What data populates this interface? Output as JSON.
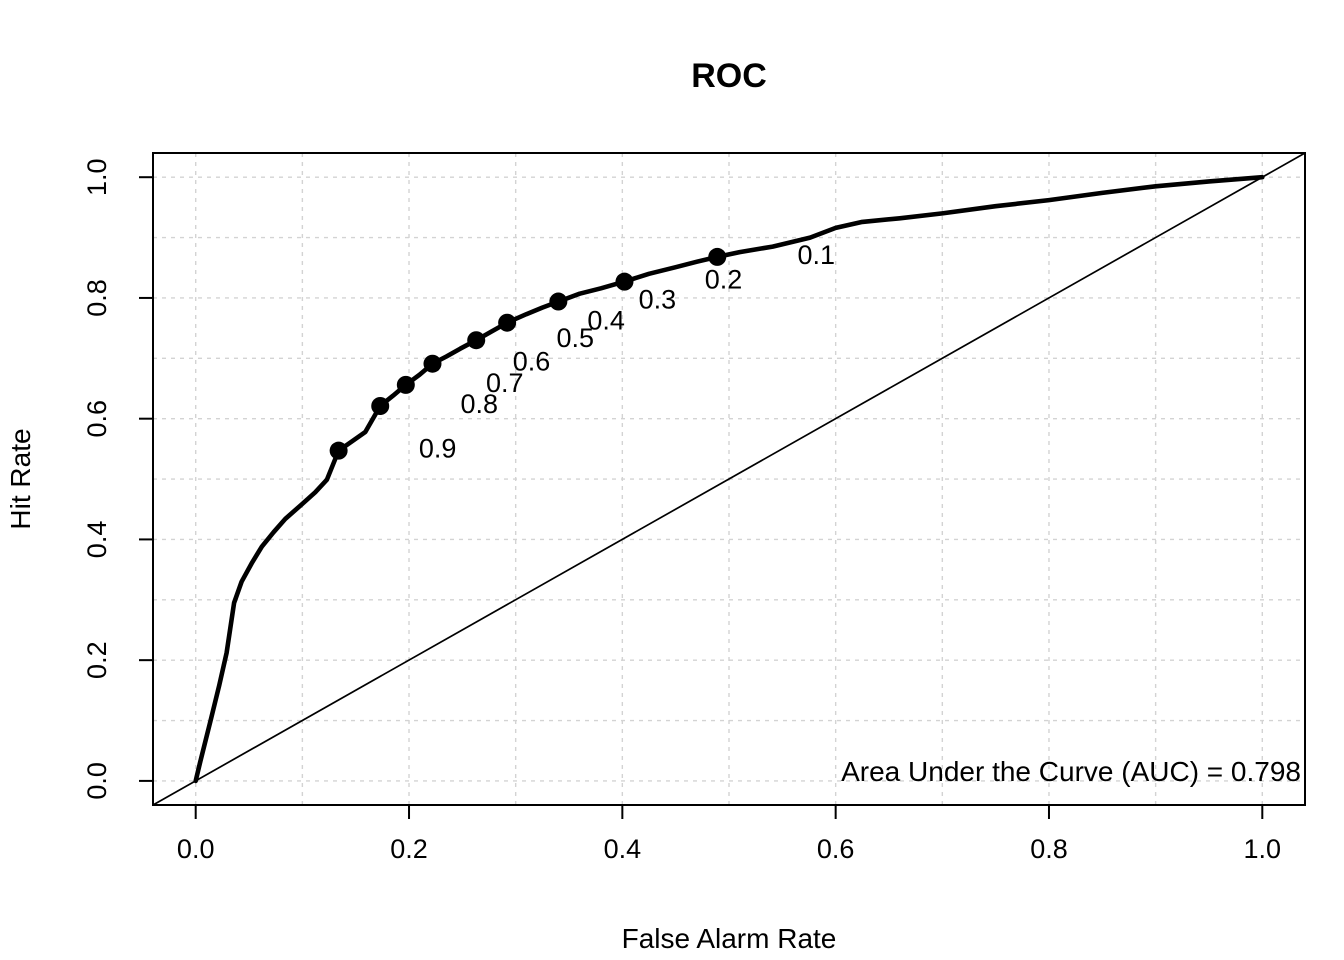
{
  "title": "ROC",
  "axes": {
    "x": {
      "label": "False Alarm Rate",
      "tick_values": [
        0.0,
        0.2,
        0.4,
        0.6,
        0.8,
        1.0
      ],
      "tick_labels": [
        "0.0",
        "0.2",
        "0.4",
        "0.6",
        "0.8",
        "1.0"
      ],
      "range": [
        0,
        1
      ]
    },
    "y": {
      "label": "Hit Rate",
      "tick_values": [
        0.0,
        0.2,
        0.4,
        0.6,
        0.8,
        1.0
      ],
      "tick_labels": [
        "0.0",
        "0.2",
        "0.4",
        "0.6",
        "0.8",
        "1.0"
      ],
      "range": [
        0,
        1
      ]
    }
  },
  "annotation": {
    "auc_text": "Area Under the Curve (AUC) = 0.798"
  },
  "colors": {
    "curve": "#000000",
    "diagonal": "#000000",
    "grid": "#d3d3d3",
    "text": "#000000",
    "background": "#ffffff"
  },
  "chart_data": {
    "type": "line",
    "title": "ROC",
    "xlabel": "False Alarm Rate",
    "ylabel": "Hit Rate",
    "xlim": [
      0,
      1
    ],
    "ylim": [
      0,
      1
    ],
    "grid": {
      "on": true,
      "step": 0.1,
      "style": "dashed",
      "color": "#d3d3d3"
    },
    "auc": 0.798,
    "series": [
      {
        "name": "ROC curve",
        "style": "thick solid black line",
        "points": [
          [
            0.0,
            0.0
          ],
          [
            0.004,
            0.03
          ],
          [
            0.014,
            0.1
          ],
          [
            0.022,
            0.158
          ],
          [
            0.029,
            0.212
          ],
          [
            0.036,
            0.295
          ],
          [
            0.043,
            0.33
          ],
          [
            0.053,
            0.362
          ],
          [
            0.062,
            0.388
          ],
          [
            0.073,
            0.412
          ],
          [
            0.084,
            0.434
          ],
          [
            0.1,
            0.459
          ],
          [
            0.112,
            0.478
          ],
          [
            0.123,
            0.499
          ],
          [
            0.134,
            0.547
          ],
          [
            0.147,
            0.563
          ],
          [
            0.159,
            0.578
          ],
          [
            0.173,
            0.621
          ],
          [
            0.185,
            0.638
          ],
          [
            0.197,
            0.656
          ],
          [
            0.21,
            0.673
          ],
          [
            0.222,
            0.691
          ],
          [
            0.235,
            0.703
          ],
          [
            0.248,
            0.716
          ],
          [
            0.263,
            0.73
          ],
          [
            0.277,
            0.744
          ],
          [
            0.292,
            0.759
          ],
          [
            0.31,
            0.773
          ],
          [
            0.325,
            0.784
          ],
          [
            0.34,
            0.794
          ],
          [
            0.36,
            0.807
          ],
          [
            0.38,
            0.816
          ],
          [
            0.402,
            0.827
          ],
          [
            0.425,
            0.84
          ],
          [
            0.45,
            0.851
          ],
          [
            0.47,
            0.86
          ],
          [
            0.489,
            0.868
          ],
          [
            0.51,
            0.876
          ],
          [
            0.541,
            0.885
          ],
          [
            0.56,
            0.893
          ],
          [
            0.576,
            0.9
          ],
          [
            0.6,
            0.916
          ],
          [
            0.625,
            0.926
          ],
          [
            0.66,
            0.932
          ],
          [
            0.7,
            0.94
          ],
          [
            0.75,
            0.952
          ],
          [
            0.8,
            0.962
          ],
          [
            0.85,
            0.974
          ],
          [
            0.9,
            0.985
          ],
          [
            0.95,
            0.993
          ],
          [
            1.0,
            1.0
          ]
        ]
      },
      {
        "name": "chance diagonal",
        "style": "thin solid black line",
        "points": [
          [
            0,
            0
          ],
          [
            1,
            1
          ]
        ]
      }
    ],
    "threshold_points": [
      {
        "label": "0.1",
        "x": 0.489,
        "y": 0.868
      },
      {
        "label": "0.2",
        "x": 0.402,
        "y": 0.827
      },
      {
        "label": "0.3",
        "x": 0.34,
        "y": 0.794
      },
      {
        "label": "0.4",
        "x": 0.292,
        "y": 0.759
      },
      {
        "label": "0.5",
        "x": 0.263,
        "y": 0.73
      },
      {
        "label": "0.6",
        "x": 0.222,
        "y": 0.691
      },
      {
        "label": "0.7",
        "x": 0.197,
        "y": 0.656
      },
      {
        "label": "0.8",
        "x": 0.173,
        "y": 0.621
      },
      {
        "label": "0.9",
        "x": 0.134,
        "y": 0.547
      }
    ]
  }
}
